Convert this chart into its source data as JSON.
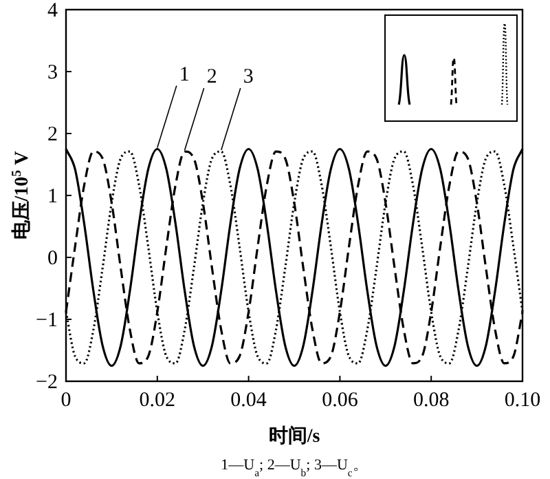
{
  "chart_data": {
    "type": "line",
    "xlabel": "时间/s",
    "ylabel": "电压/10$^{5}$ V",
    "annotations": [
      "1—U$_{a}$; 2—U$_{b}$; 3—U$_{c}$。"
    ],
    "xlim": [
      0,
      0.1
    ],
    "ylim": [
      -2,
      4
    ],
    "xticks": [
      0,
      0.02,
      0.04,
      0.06,
      0.08,
      {
        "value": 0.1,
        "label": "0.10"
      }
    ],
    "yticks": [
      -2,
      -1,
      0,
      1,
      2,
      3,
      4
    ],
    "grid": false,
    "marker": "none",
    "x": [
      0,
      0.002,
      0.004,
      0.006,
      0.008,
      0.01,
      0.012,
      0.014,
      0.016,
      0.018,
      0.02,
      0.022,
      0.024,
      0.026,
      0.028,
      0.03,
      0.032,
      0.034,
      0.036,
      0.038,
      0.04,
      0.042,
      0.044,
      0.046,
      0.048,
      0.05,
      0.052,
      0.054,
      0.056,
      0.058,
      0.06,
      0.062,
      0.064,
      0.066,
      0.068,
      0.07,
      0.072,
      0.074,
      0.076,
      0.078,
      0.08,
      0.082,
      0.084,
      0.086,
      0.088,
      0.09,
      0.092,
      0.094,
      0.096,
      0.098,
      0.1
    ],
    "series": [
      {
        "name": "1",
        "color": "#000000",
        "line_style": "solid",
        "values": [
          1.75,
          1.42,
          0.54,
          -0.54,
          -1.42,
          -1.75,
          -1.42,
          -0.54,
          0.54,
          1.42,
          1.75,
          1.42,
          0.54,
          -0.54,
          -1.42,
          -1.75,
          -1.42,
          -0.54,
          0.54,
          1.42,
          1.75,
          1.42,
          0.54,
          -0.54,
          -1.42,
          -1.75,
          -1.42,
          -0.54,
          0.54,
          1.42,
          1.75,
          1.42,
          0.54,
          -0.54,
          -1.42,
          -1.75,
          -1.42,
          -0.54,
          0.54,
          1.42,
          1.75,
          1.42,
          0.54,
          -0.54,
          -1.42,
          -1.75,
          -1.42,
          -0.54,
          0.54,
          1.42,
          1.75
        ]
      },
      {
        "name": "2",
        "color": "#000000",
        "line_style": "dashed",
        "values": [
          -0.88,
          0.18,
          1.17,
          1.71,
          1.6,
          0.88,
          -0.18,
          -1.17,
          -1.71,
          -1.6,
          -0.88,
          0.18,
          1.17,
          1.71,
          1.6,
          0.88,
          -0.18,
          -1.17,
          -1.71,
          -1.6,
          -0.88,
          0.18,
          1.17,
          1.71,
          1.6,
          0.88,
          -0.18,
          -1.17,
          -1.71,
          -1.6,
          -0.88,
          0.18,
          1.17,
          1.71,
          1.6,
          0.88,
          -0.18,
          -1.17,
          -1.71,
          -1.6,
          -0.88,
          0.18,
          1.17,
          1.71,
          1.6,
          0.88,
          -0.18,
          -1.17,
          -1.71,
          -1.6,
          -0.88
        ]
      },
      {
        "name": "3",
        "color": "#000000",
        "line_style": "dotted",
        "values": [
          -0.88,
          -1.6,
          -1.71,
          -1.17,
          -0.18,
          0.88,
          1.6,
          1.71,
          1.17,
          0.18,
          -0.88,
          -1.6,
          -1.71,
          -1.17,
          -0.18,
          0.88,
          1.6,
          1.71,
          1.17,
          0.18,
          -0.88,
          -1.6,
          -1.71,
          -1.17,
          -0.18,
          0.88,
          1.6,
          1.71,
          1.17,
          0.18,
          -0.88,
          -1.6,
          -1.71,
          -1.17,
          -0.18,
          0.88,
          1.6,
          1.71,
          1.17,
          0.18,
          -0.88,
          -1.6,
          -1.71,
          -1.17,
          -0.18,
          0.88,
          1.6,
          1.71,
          1.17,
          0.18,
          -0.88
        ]
      }
    ]
  }
}
